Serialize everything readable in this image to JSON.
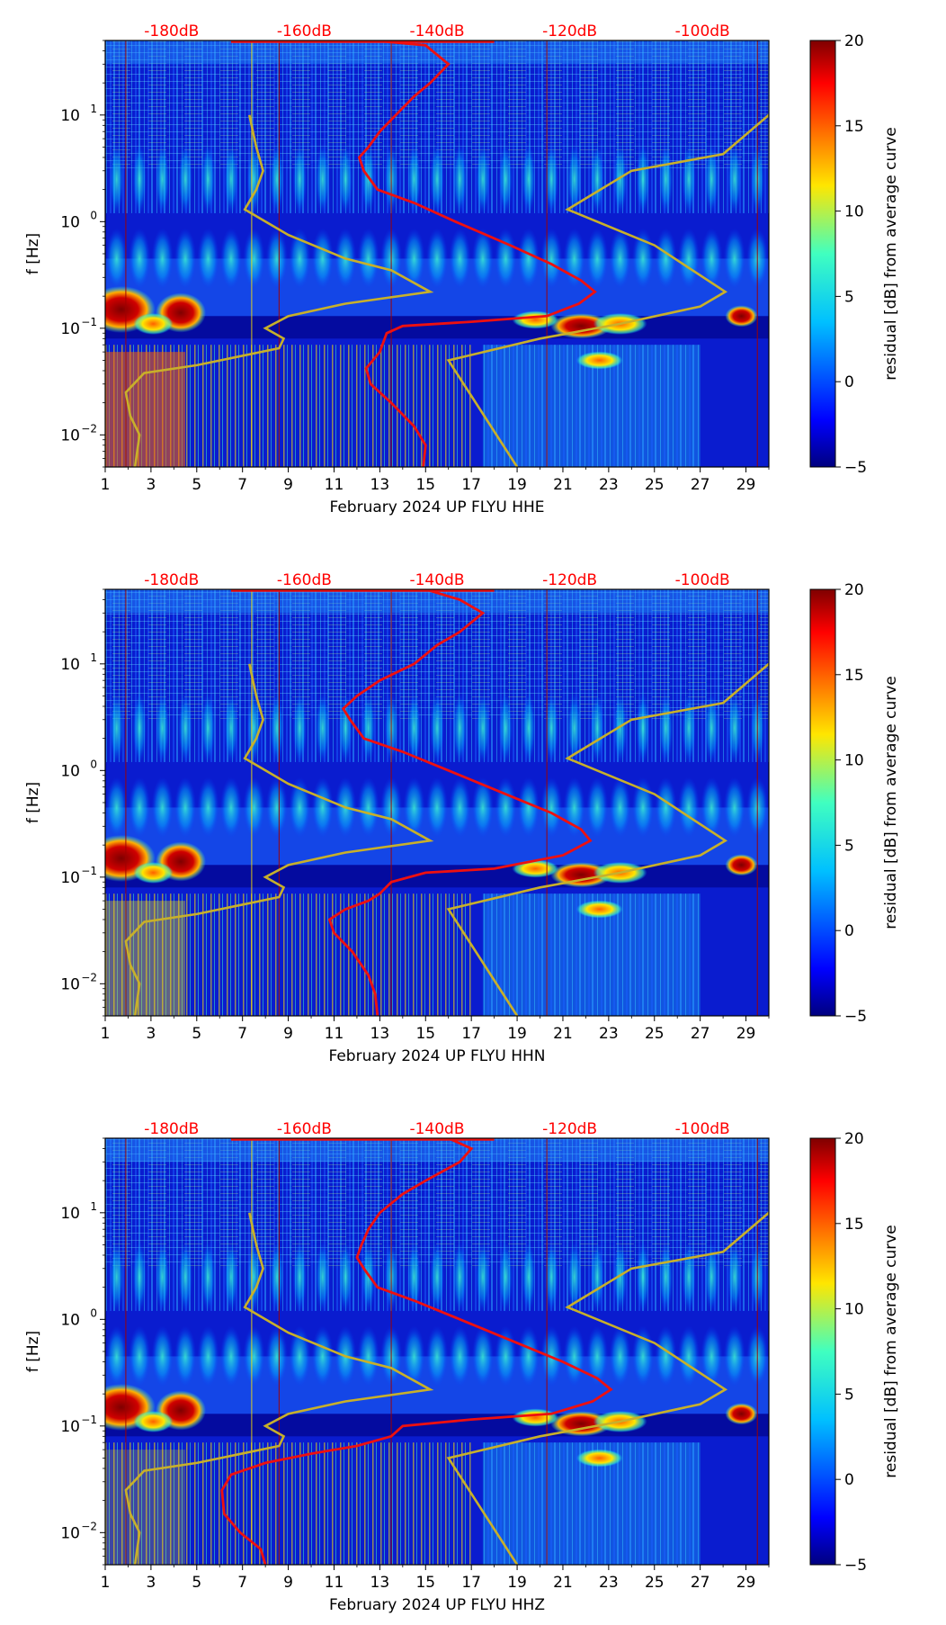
{
  "chart_data": [
    {
      "type": "heatmap",
      "xlabel": "February 2024 UP FLYU  HHE",
      "ylabel": "f [Hz]",
      "x_ticks": [
        1,
        3,
        5,
        7,
        9,
        11,
        13,
        15,
        17,
        19,
        21,
        23,
        25,
        27,
        29
      ],
      "x_range": [
        1,
        30
      ],
      "y_range": [
        0.005,
        50
      ],
      "y_ticks": [
        {
          "value": 0.01,
          "base": "10",
          "exp": "−2"
        },
        {
          "value": 0.1,
          "base": "10",
          "exp": "−1"
        },
        {
          "value": 1,
          "base": "10",
          "exp": "0"
        },
        {
          "value": 10,
          "base": "10",
          "exp": "1"
        }
      ],
      "db_scale": {
        "labels": [
          "-180dB",
          "-160dB",
          "-140dB",
          "-120dB",
          "-100dB"
        ],
        "positions": [
          3.9,
          9.7,
          15.5,
          21.3,
          27.1
        ],
        "color": "#ff0000"
      },
      "colorbar": {
        "label": "residual [dB] from average curve",
        "range": [
          -5,
          20
        ],
        "ticks": [
          -5,
          0,
          5,
          10,
          15,
          20
        ]
      },
      "mean_curve": [
        [
          12.7,
          50
        ],
        [
          15,
          45
        ],
        [
          16,
          30
        ],
        [
          15.2,
          20
        ],
        [
          14.5,
          15
        ],
        [
          13.7,
          10
        ],
        [
          13,
          7
        ],
        [
          12.5,
          5
        ],
        [
          12.1,
          4
        ],
        [
          12.3,
          3
        ],
        [
          12.9,
          2
        ],
        [
          14.5,
          1.5
        ],
        [
          16.3,
          1.0
        ],
        [
          18.7,
          0.6
        ],
        [
          20.5,
          0.4
        ],
        [
          21.8,
          0.28
        ],
        [
          22.4,
          0.22
        ],
        [
          21.7,
          0.17
        ],
        [
          20.3,
          0.13
        ],
        [
          17,
          0.115
        ],
        [
          14,
          0.105
        ],
        [
          13.3,
          0.09
        ],
        [
          13,
          0.06
        ],
        [
          12.7,
          0.05
        ],
        [
          12.4,
          0.042
        ],
        [
          12.6,
          0.03
        ],
        [
          13.5,
          0.02
        ],
        [
          14.5,
          0.012
        ],
        [
          15,
          0.008
        ],
        [
          14.9,
          0.005
        ]
      ],
      "noise_models": [
        [
          [
            7.3,
            10
          ],
          [
            7.6,
            5
          ],
          [
            7.9,
            3
          ],
          [
            7.6,
            2
          ],
          [
            7.1,
            1.3
          ],
          [
            9,
            0.75
          ],
          [
            11.5,
            0.45
          ],
          [
            13.5,
            0.35
          ],
          [
            15.2,
            0.22
          ],
          [
            11.5,
            0.17
          ],
          [
            9,
            0.13
          ],
          [
            8,
            0.1
          ],
          [
            8.8,
            0.08
          ],
          [
            8.6,
            0.065
          ],
          [
            5,
            0.045
          ],
          [
            2.7,
            0.038
          ],
          [
            1.9,
            0.025
          ],
          [
            2.1,
            0.015
          ],
          [
            2.5,
            0.01
          ],
          [
            2.3,
            0.005
          ]
        ],
        [
          [
            30,
            10
          ],
          [
            28,
            4.3
          ],
          [
            24,
            3
          ],
          [
            21.2,
            1.3
          ],
          [
            25,
            0.6
          ],
          [
            28.1,
            0.22
          ],
          [
            27,
            0.16
          ],
          [
            23.5,
            0.11
          ],
          [
            20,
            0.08
          ],
          [
            16,
            0.05
          ],
          [
            19,
            0.005
          ]
        ]
      ]
    },
    {
      "type": "heatmap",
      "xlabel": "February 2024 UP FLYU  HHN",
      "ylabel": "f [Hz]",
      "x_ticks": [
        1,
        3,
        5,
        7,
        9,
        11,
        13,
        15,
        17,
        19,
        21,
        23,
        25,
        27,
        29
      ],
      "x_range": [
        1,
        30
      ],
      "y_range": [
        0.005,
        50
      ],
      "y_ticks": [
        {
          "value": 0.01,
          "base": "10",
          "exp": "−2"
        },
        {
          "value": 0.1,
          "base": "10",
          "exp": "−1"
        },
        {
          "value": 1,
          "base": "10",
          "exp": "0"
        },
        {
          "value": 10,
          "base": "10",
          "exp": "1"
        }
      ],
      "db_scale": {
        "labels": [
          "-180dB",
          "-160dB",
          "-140dB",
          "-120dB",
          "-100dB"
        ],
        "positions": [
          3.9,
          9.7,
          15.5,
          21.3,
          27.1
        ],
        "color": "#ff0000"
      },
      "colorbar": {
        "label": "residual [dB] from average curve",
        "range": [
          -5,
          20
        ],
        "ticks": [
          -5,
          0,
          5,
          10,
          15,
          20
        ]
      },
      "mean_curve": [
        [
          15,
          50
        ],
        [
          16.5,
          40
        ],
        [
          17.5,
          30
        ],
        [
          16.5,
          20
        ],
        [
          15.5,
          15
        ],
        [
          14.5,
          10
        ],
        [
          13,
          7
        ],
        [
          12,
          5
        ],
        [
          11.4,
          3.8
        ],
        [
          11.7,
          3
        ],
        [
          12.3,
          2
        ],
        [
          14,
          1.5
        ],
        [
          16,
          1.0
        ],
        [
          18.5,
          0.6
        ],
        [
          20.5,
          0.4
        ],
        [
          21.8,
          0.28
        ],
        [
          22.2,
          0.22
        ],
        [
          21,
          0.16
        ],
        [
          18,
          0.12
        ],
        [
          15,
          0.11
        ],
        [
          13.5,
          0.09
        ],
        [
          13,
          0.07
        ],
        [
          12.5,
          0.06
        ],
        [
          11.5,
          0.05
        ],
        [
          10.8,
          0.04
        ],
        [
          11,
          0.03
        ],
        [
          11.8,
          0.02
        ],
        [
          12.5,
          0.012
        ],
        [
          12.8,
          0.008
        ],
        [
          12.9,
          0.005
        ]
      ],
      "noise_models": [
        [
          [
            7.3,
            10
          ],
          [
            7.6,
            5
          ],
          [
            7.9,
            3
          ],
          [
            7.6,
            2
          ],
          [
            7.1,
            1.3
          ],
          [
            9,
            0.75
          ],
          [
            11.5,
            0.45
          ],
          [
            13.5,
            0.35
          ],
          [
            15.2,
            0.22
          ],
          [
            11.5,
            0.17
          ],
          [
            9,
            0.13
          ],
          [
            8,
            0.1
          ],
          [
            8.8,
            0.08
          ],
          [
            8.6,
            0.065
          ],
          [
            5,
            0.045
          ],
          [
            2.7,
            0.038
          ],
          [
            1.9,
            0.025
          ],
          [
            2.1,
            0.015
          ],
          [
            2.5,
            0.01
          ],
          [
            2.3,
            0.005
          ]
        ],
        [
          [
            30,
            10
          ],
          [
            28,
            4.3
          ],
          [
            24,
            3
          ],
          [
            21.2,
            1.3
          ],
          [
            25,
            0.6
          ],
          [
            28.1,
            0.22
          ],
          [
            27,
            0.16
          ],
          [
            23.5,
            0.11
          ],
          [
            20,
            0.08
          ],
          [
            16,
            0.05
          ],
          [
            19,
            0.005
          ]
        ]
      ]
    },
    {
      "type": "heatmap",
      "xlabel": "February 2024 UP FLYU  HHZ",
      "ylabel": "f [Hz]",
      "x_ticks": [
        1,
        3,
        5,
        7,
        9,
        11,
        13,
        15,
        17,
        19,
        21,
        23,
        25,
        27,
        29
      ],
      "x_range": [
        1,
        30
      ],
      "y_range": [
        0.005,
        50
      ],
      "y_ticks": [
        {
          "value": 0.01,
          "base": "10",
          "exp": "−2"
        },
        {
          "value": 0.1,
          "base": "10",
          "exp": "−1"
        },
        {
          "value": 1,
          "base": "10",
          "exp": "0"
        },
        {
          "value": 10,
          "base": "10",
          "exp": "1"
        }
      ],
      "db_scale": {
        "labels": [
          "-180dB",
          "-160dB",
          "-140dB",
          "-120dB",
          "-100dB"
        ],
        "positions": [
          3.9,
          9.7,
          15.5,
          21.3,
          27.1
        ],
        "color": "#ff0000"
      },
      "colorbar": {
        "label": "residual [dB] from average curve",
        "range": [
          -5,
          20
        ],
        "ticks": [
          -5,
          0,
          5,
          10,
          15,
          20
        ]
      },
      "mean_curve": [
        [
          16,
          50
        ],
        [
          17,
          40
        ],
        [
          16.5,
          30
        ],
        [
          15,
          20
        ],
        [
          14,
          15
        ],
        [
          13,
          10
        ],
        [
          12.5,
          7
        ],
        [
          12.2,
          5
        ],
        [
          12,
          3.8
        ],
        [
          12.3,
          3
        ],
        [
          12.9,
          2
        ],
        [
          14.5,
          1.5
        ],
        [
          16.5,
          1.0
        ],
        [
          19,
          0.6
        ],
        [
          21,
          0.4
        ],
        [
          22.5,
          0.28
        ],
        [
          23.1,
          0.22
        ],
        [
          22.3,
          0.17
        ],
        [
          20.5,
          0.13
        ],
        [
          17,
          0.115
        ],
        [
          14,
          0.1
        ],
        [
          13.5,
          0.08
        ],
        [
          12,
          0.065
        ],
        [
          10,
          0.055
        ],
        [
          8,
          0.045
        ],
        [
          6.5,
          0.035
        ],
        [
          6.1,
          0.025
        ],
        [
          6.2,
          0.015
        ],
        [
          6.9,
          0.01
        ],
        [
          7.8,
          0.007
        ],
        [
          8,
          0.005
        ]
      ],
      "noise_models": [
        [
          [
            7.3,
            10
          ],
          [
            7.6,
            5
          ],
          [
            7.9,
            3
          ],
          [
            7.6,
            2
          ],
          [
            7.1,
            1.3
          ],
          [
            9,
            0.75
          ],
          [
            11.5,
            0.45
          ],
          [
            13.5,
            0.35
          ],
          [
            15.2,
            0.22
          ],
          [
            11.5,
            0.17
          ],
          [
            9,
            0.13
          ],
          [
            8,
            0.1
          ],
          [
            8.8,
            0.08
          ],
          [
            8.6,
            0.065
          ],
          [
            5,
            0.045
          ],
          [
            2.7,
            0.038
          ],
          [
            1.9,
            0.025
          ],
          [
            2.1,
            0.015
          ],
          [
            2.5,
            0.01
          ],
          [
            2.3,
            0.005
          ]
        ],
        [
          [
            30,
            10
          ],
          [
            28,
            4.3
          ],
          [
            24,
            3
          ],
          [
            21.2,
            1.3
          ],
          [
            25,
            0.6
          ],
          [
            28.1,
            0.22
          ],
          [
            27,
            0.16
          ],
          [
            23.5,
            0.11
          ],
          [
            20,
            0.08
          ],
          [
            16,
            0.05
          ],
          [
            19,
            0.005
          ]
        ]
      ]
    }
  ]
}
